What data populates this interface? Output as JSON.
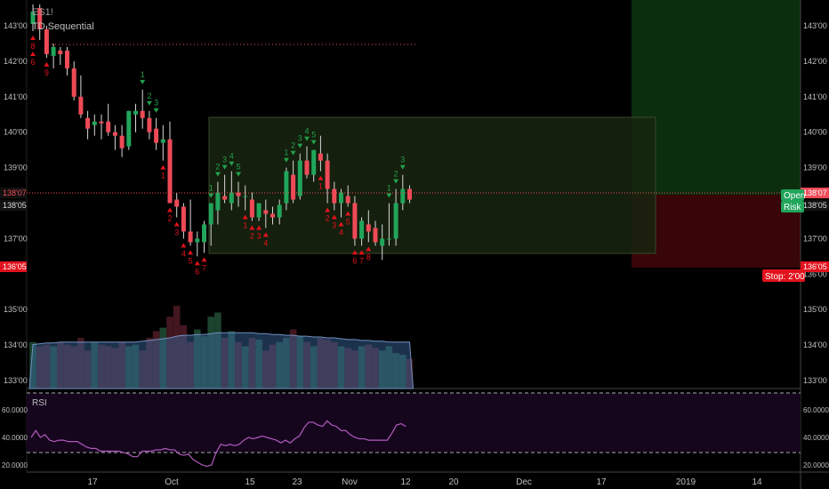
{
  "header": {
    "symbol": "ES1!",
    "indicator": "TD Sequential"
  },
  "rsi": {
    "label": "RSI",
    "levels": [
      "60.0000",
      "40.0000",
      "20.0000"
    ],
    "upper": 70,
    "lower": 30,
    "values": [
      40,
      45,
      40,
      42,
      38,
      37,
      38,
      38,
      37,
      37,
      37,
      35,
      33,
      32,
      32,
      30,
      30,
      30,
      30,
      30,
      29,
      28,
      26,
      26,
      30,
      30,
      30,
      31,
      31,
      32,
      31,
      31,
      28,
      27,
      28,
      24,
      22,
      20,
      19,
      20,
      29,
      35,
      34,
      35,
      34,
      35,
      38,
      40,
      39,
      40,
      41,
      40,
      39,
      38,
      36,
      38,
      36,
      39,
      41,
      47,
      51,
      51,
      49,
      48,
      52,
      49,
      48,
      45,
      45,
      42,
      40,
      39,
      39,
      38,
      38,
      38,
      38,
      38,
      43,
      49,
      50,
      48
    ]
  },
  "price_labels": {
    "last": "138'07",
    "prev": "138'05",
    "stop_price": "136'05",
    "open_tag": "Open",
    "risk_tag": "Risk",
    "stop_tag": "Stop: 2'00"
  },
  "colors": {
    "up": "#21a55b",
    "down": "#ef4a57",
    "seq_up": "#23a04d",
    "seq_down": "#e2121d",
    "rsi": "#b35bbf",
    "profit": "#0c3010",
    "loss": "#3b0508",
    "zone": "#17240f"
  },
  "chart_data": {
    "type": "candlestick",
    "title": "TD Sequential",
    "y_axis_ticks": [
      "143'00",
      "142'00",
      "141'00",
      "140'00",
      "139'00",
      "138'00",
      "137'00",
      "136'00",
      "135'00",
      "134'00",
      "133'00"
    ],
    "x_axis_ticks": [
      "17",
      "Oct",
      "15",
      "23",
      "Nov",
      "12",
      "20",
      "Dec",
      "17",
      "2019",
      "14"
    ],
    "ylim": [
      132.875,
      143.5
    ],
    "candles": [
      {
        "o": 143.05,
        "h": 143.6,
        "l": 142.85,
        "c": 143.4
      },
      {
        "o": 143.5,
        "h": 143.6,
        "l": 142.6,
        "c": 142.9
      },
      {
        "o": 142.9,
        "h": 143.0,
        "l": 142.1,
        "c": 142.2
      },
      {
        "o": 142.15,
        "h": 142.5,
        "l": 141.8,
        "c": 142.4
      },
      {
        "o": 142.3,
        "h": 142.4,
        "l": 141.9,
        "c": 142.2
      },
      {
        "o": 142.3,
        "h": 142.4,
        "l": 141.6,
        "c": 141.8
      },
      {
        "o": 141.8,
        "h": 142.0,
        "l": 140.9,
        "c": 141.0
      },
      {
        "o": 141.0,
        "h": 141.6,
        "l": 140.4,
        "c": 140.5
      },
      {
        "o": 140.4,
        "h": 140.6,
        "l": 139.8,
        "c": 140.1
      },
      {
        "o": 140.2,
        "h": 140.5,
        "l": 139.9,
        "c": 140.3
      },
      {
        "o": 140.3,
        "h": 140.5,
        "l": 139.8,
        "c": 140.25
      },
      {
        "o": 140.3,
        "h": 140.8,
        "l": 139.9,
        "c": 140.0
      },
      {
        "o": 140.0,
        "h": 140.2,
        "l": 139.5,
        "c": 139.9
      },
      {
        "o": 139.9,
        "h": 140.2,
        "l": 139.3,
        "c": 139.55
      },
      {
        "o": 139.6,
        "h": 140.6,
        "l": 139.5,
        "c": 140.6
      },
      {
        "o": 140.5,
        "h": 140.8,
        "l": 140.0,
        "c": 140.6
      },
      {
        "o": 140.6,
        "h": 141.2,
        "l": 140.1,
        "c": 140.4
      },
      {
        "o": 140.4,
        "h": 140.6,
        "l": 139.8,
        "c": 140.0
      },
      {
        "o": 140.1,
        "h": 140.4,
        "l": 139.5,
        "c": 139.7
      },
      {
        "o": 139.7,
        "h": 140.2,
        "l": 139.2,
        "c": 139.8
      },
      {
        "o": 139.8,
        "h": 140.3,
        "l": 138.0,
        "c": 138.0
      },
      {
        "o": 138.1,
        "h": 138.3,
        "l": 137.6,
        "c": 137.9
      },
      {
        "o": 137.9,
        "h": 138.0,
        "l": 137.0,
        "c": 137.2
      },
      {
        "o": 137.2,
        "h": 138.1,
        "l": 136.8,
        "c": 136.9
      },
      {
        "o": 136.9,
        "h": 137.2,
        "l": 136.5,
        "c": 137.0
      },
      {
        "o": 136.9,
        "h": 137.5,
        "l": 136.6,
        "c": 137.4
      },
      {
        "o": 137.4,
        "h": 138.0,
        "l": 136.8,
        "c": 138.0
      },
      {
        "o": 137.8,
        "h": 138.6,
        "l": 137.4,
        "c": 138.3
      },
      {
        "o": 138.2,
        "h": 138.8,
        "l": 138.0,
        "c": 138.1
      },
      {
        "o": 138.0,
        "h": 138.9,
        "l": 137.8,
        "c": 138.3
      },
      {
        "o": 138.3,
        "h": 138.6,
        "l": 137.9,
        "c": 138.2
      },
      {
        "o": 138.2,
        "h": 138.5,
        "l": 137.8,
        "c": 138.2
      },
      {
        "o": 138.1,
        "h": 138.3,
        "l": 137.5,
        "c": 137.6
      },
      {
        "o": 137.6,
        "h": 138.0,
        "l": 137.5,
        "c": 138.0
      },
      {
        "o": 137.8,
        "h": 138.1,
        "l": 137.3,
        "c": 137.7
      },
      {
        "o": 137.7,
        "h": 137.9,
        "l": 137.4,
        "c": 137.6
      },
      {
        "o": 137.6,
        "h": 138.1,
        "l": 137.4,
        "c": 137.95
      },
      {
        "o": 138.0,
        "h": 139.0,
        "l": 137.8,
        "c": 138.9
      },
      {
        "o": 138.8,
        "h": 139.2,
        "l": 138.0,
        "c": 138.1
      },
      {
        "o": 138.2,
        "h": 139.4,
        "l": 138.1,
        "c": 139.2
      },
      {
        "o": 139.2,
        "h": 139.6,
        "l": 138.7,
        "c": 138.8
      },
      {
        "o": 138.8,
        "h": 139.5,
        "l": 138.6,
        "c": 139.5
      },
      {
        "o": 139.4,
        "h": 139.9,
        "l": 138.9,
        "c": 139.2
      },
      {
        "o": 139.2,
        "h": 139.4,
        "l": 138.0,
        "c": 138.4
      },
      {
        "o": 138.4,
        "h": 138.6,
        "l": 137.8,
        "c": 138.0
      },
      {
        "o": 138.0,
        "h": 138.4,
        "l": 137.6,
        "c": 138.3
      },
      {
        "o": 138.2,
        "h": 138.5,
        "l": 137.9,
        "c": 138.0
      },
      {
        "o": 138.0,
        "h": 138.2,
        "l": 136.8,
        "c": 137.0
      },
      {
        "o": 137.0,
        "h": 137.6,
        "l": 136.8,
        "c": 137.5
      },
      {
        "o": 137.4,
        "h": 137.8,
        "l": 136.9,
        "c": 137.2
      },
      {
        "o": 137.3,
        "h": 137.5,
        "l": 136.8,
        "c": 136.9
      },
      {
        "o": 136.8,
        "h": 137.4,
        "l": 136.4,
        "c": 137.0
      },
      {
        "o": 137.0,
        "h": 138.0,
        "l": 136.8,
        "c": 137.0
      },
      {
        "o": 137.0,
        "h": 138.4,
        "l": 136.8,
        "c": 138.0
      },
      {
        "o": 138.0,
        "h": 138.8,
        "l": 137.8,
        "c": 138.4
      },
      {
        "o": 138.4,
        "h": 138.5,
        "l": 138.0,
        "c": 138.1
      }
    ],
    "td_counts": [
      {
        "i": 0,
        "n": "8",
        "dir": "down"
      },
      {
        "i": 0,
        "n": "6",
        "dir": "down"
      },
      {
        "i": 2,
        "n": "9",
        "dir": "down"
      },
      {
        "i": 16,
        "n": "1",
        "dir": "up"
      },
      {
        "i": 17,
        "n": "2",
        "dir": "up"
      },
      {
        "i": 18,
        "n": "3",
        "dir": "up"
      },
      {
        "i": 19,
        "n": "1",
        "dir": "down"
      },
      {
        "i": 20,
        "n": "2",
        "dir": "down"
      },
      {
        "i": 21,
        "n": "3",
        "dir": "down"
      },
      {
        "i": 22,
        "n": "4",
        "dir": "down"
      },
      {
        "i": 23,
        "n": "5",
        "dir": "down"
      },
      {
        "i": 24,
        "n": "6",
        "dir": "down"
      },
      {
        "i": 25,
        "n": "7",
        "dir": "down"
      },
      {
        "i": 26,
        "n": "1",
        "dir": "up"
      },
      {
        "i": 27,
        "n": "2",
        "dir": "up"
      },
      {
        "i": 28,
        "n": "3",
        "dir": "up"
      },
      {
        "i": 29,
        "n": "4",
        "dir": "up"
      },
      {
        "i": 30,
        "n": "5",
        "dir": "up"
      },
      {
        "i": 31,
        "n": "1",
        "dir": "down"
      },
      {
        "i": 32,
        "n": "2",
        "dir": "down"
      },
      {
        "i": 33,
        "n": "3",
        "dir": "down"
      },
      {
        "i": 34,
        "n": "4",
        "dir": "down"
      },
      {
        "i": 37,
        "n": "1",
        "dir": "up"
      },
      {
        "i": 38,
        "n": "2",
        "dir": "up"
      },
      {
        "i": 39,
        "n": "3",
        "dir": "up"
      },
      {
        "i": 40,
        "n": "4",
        "dir": "up"
      },
      {
        "i": 41,
        "n": "5",
        "dir": "up"
      },
      {
        "i": 42,
        "n": "1",
        "dir": "down"
      },
      {
        "i": 43,
        "n": "2",
        "dir": "down"
      },
      {
        "i": 44,
        "n": "3",
        "dir": "down"
      },
      {
        "i": 45,
        "n": "4",
        "dir": "down"
      },
      {
        "i": 46,
        "n": "5",
        "dir": "down"
      },
      {
        "i": 47,
        "n": "6",
        "dir": "down"
      },
      {
        "i": 48,
        "n": "7",
        "dir": "down"
      },
      {
        "i": 49,
        "n": "8",
        "dir": "down"
      },
      {
        "i": 52,
        "n": "1",
        "dir": "up"
      },
      {
        "i": 53,
        "n": "2",
        "dir": "up"
      },
      {
        "i": 54,
        "n": "3",
        "dir": "up"
      }
    ],
    "volume": [
      0.55,
      0.5,
      0.52,
      0.5,
      0.55,
      0.52,
      0.5,
      0.6,
      0.45,
      0.55,
      0.52,
      0.5,
      0.48,
      0.55,
      0.5,
      0.52,
      0.45,
      0.6,
      0.68,
      0.72,
      0.85,
      0.98,
      0.75,
      0.55,
      0.7,
      0.62,
      0.85,
      0.9,
      0.6,
      0.68,
      0.55,
      0.5,
      0.6,
      0.58,
      0.45,
      0.52,
      0.55,
      0.6,
      0.7,
      0.62,
      0.55,
      0.5,
      0.6,
      0.58,
      0.55,
      0.5,
      0.48,
      0.45,
      0.5,
      0.52,
      0.48,
      0.45,
      0.5,
      0.42,
      0.4,
      0.35
    ],
    "volume_ma": [
      0.52,
      0.53,
      0.54,
      0.54,
      0.55,
      0.55,
      0.55,
      0.55,
      0.55,
      0.55,
      0.55,
      0.55,
      0.55,
      0.55,
      0.55,
      0.55,
      0.56,
      0.57,
      0.58,
      0.59,
      0.6,
      0.62,
      0.63,
      0.63,
      0.64,
      0.64,
      0.65,
      0.66,
      0.66,
      0.66,
      0.66,
      0.66,
      0.66,
      0.65,
      0.65,
      0.64,
      0.64,
      0.63,
      0.63,
      0.62,
      0.62,
      0.61,
      0.61,
      0.6,
      0.6,
      0.59,
      0.58,
      0.58,
      0.57,
      0.57,
      0.56,
      0.56,
      0.55,
      0.55,
      0.55,
      0.55
    ]
  }
}
